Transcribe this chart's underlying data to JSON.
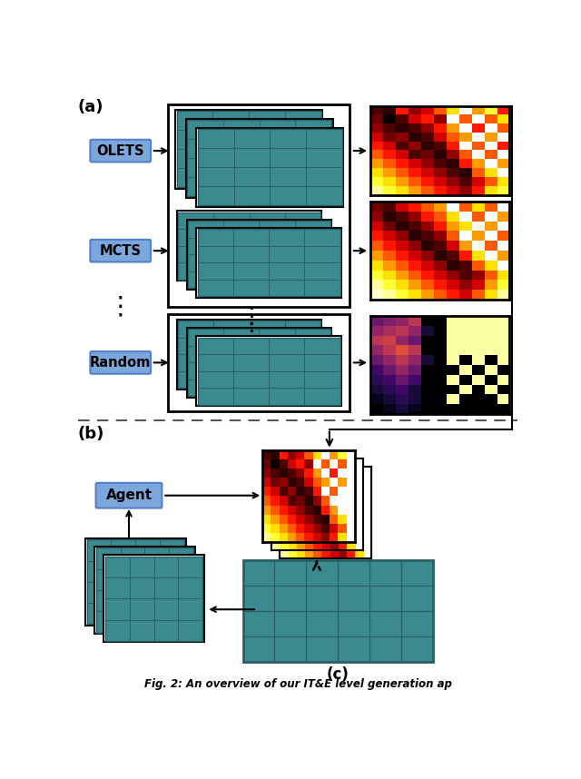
{
  "fig_width": 6.4,
  "fig_height": 8.58,
  "bg_color": "#ffffff",
  "label_a": "(a)",
  "label_b": "(b)",
  "label_c": "(c)",
  "caption": "Fig. 2: An overview of our IT&E level generation ap",
  "olets_label": "OLETS",
  "mcts_label": "MCTS",
  "random_label": "Random",
  "agent_label": "Agent",
  "label_box_color": "#7ba7dc",
  "label_box_edge": "#5580c8",
  "teal_color": "#3a8a90",
  "teal_dark": "#2a6065",
  "teal_light": "#4aacb4",
  "dashed_line_color": "#555555",
  "arrow_color": "#111111",
  "hm1_data": [
    [
      0.9,
      0.95,
      0.6,
      0.8,
      0.7,
      0.5,
      0.3,
      0.0,
      0.4,
      0.2,
      0.6
    ],
    [
      0.85,
      1.0,
      0.9,
      0.7,
      0.6,
      0.8,
      0.0,
      0.5,
      0.0,
      0.5,
      0.3
    ],
    [
      0.8,
      0.9,
      0.95,
      0.9,
      0.8,
      0.6,
      0.4,
      0.0,
      0.6,
      0.0,
      0.5
    ],
    [
      0.7,
      0.85,
      0.8,
      0.95,
      0.9,
      0.7,
      0.5,
      0.4,
      0.0,
      0.4,
      0.0
    ],
    [
      0.6,
      0.7,
      0.9,
      0.8,
      0.95,
      0.9,
      0.6,
      0.0,
      0.5,
      0.0,
      0.6
    ],
    [
      0.5,
      0.6,
      0.7,
      0.9,
      0.85,
      0.95,
      0.8,
      0.5,
      0.0,
      0.5,
      0.0
    ],
    [
      0.4,
      0.5,
      0.6,
      0.7,
      0.8,
      0.9,
      0.95,
      0.6,
      0.4,
      0.0,
      0.4
    ],
    [
      0.3,
      0.4,
      0.5,
      0.6,
      0.7,
      0.8,
      0.9,
      0.95,
      0.5,
      0.3,
      0.0
    ],
    [
      0.2,
      0.3,
      0.4,
      0.5,
      0.6,
      0.7,
      0.8,
      0.9,
      0.7,
      0.5,
      0.3
    ],
    [
      0.1,
      0.2,
      0.3,
      0.4,
      0.5,
      0.6,
      0.7,
      0.8,
      0.6,
      0.3,
      0.2
    ]
  ],
  "hm2_data": [
    [
      0.85,
      0.9,
      0.7,
      0.6,
      0.5,
      0.4,
      0.0,
      0.5,
      0.3,
      0.5,
      0.0
    ],
    [
      0.8,
      0.95,
      0.9,
      0.8,
      0.6,
      0.5,
      0.3,
      0.0,
      0.5,
      0.0,
      0.4
    ],
    [
      0.7,
      0.85,
      0.95,
      0.9,
      0.8,
      0.6,
      0.4,
      0.3,
      0.0,
      0.4,
      0.0
    ],
    [
      0.6,
      0.7,
      0.8,
      0.95,
      0.9,
      0.8,
      0.5,
      0.0,
      0.4,
      0.0,
      0.5
    ],
    [
      0.5,
      0.6,
      0.7,
      0.8,
      0.95,
      0.9,
      0.7,
      0.4,
      0.0,
      0.5,
      0.0
    ],
    [
      0.4,
      0.5,
      0.6,
      0.7,
      0.8,
      0.95,
      0.9,
      0.6,
      0.3,
      0.0,
      0.4
    ],
    [
      0.3,
      0.4,
      0.5,
      0.6,
      0.7,
      0.8,
      0.95,
      0.9,
      0.5,
      0.3,
      0.0
    ],
    [
      0.2,
      0.3,
      0.4,
      0.5,
      0.6,
      0.7,
      0.8,
      0.9,
      0.8,
      0.5,
      0.3
    ],
    [
      0.1,
      0.2,
      0.3,
      0.4,
      0.5,
      0.6,
      0.7,
      0.8,
      0.7,
      0.4,
      0.2
    ],
    [
      0.05,
      0.1,
      0.2,
      0.3,
      0.4,
      0.5,
      0.6,
      0.7,
      0.5,
      0.3,
      0.1
    ]
  ],
  "hm3_data": [
    [
      0.3,
      0.35,
      0.4,
      0.5,
      0.0,
      0.0,
      1.0,
      1.0,
      1.0,
      1.0,
      1.0
    ],
    [
      0.4,
      0.45,
      0.5,
      0.4,
      0.1,
      0.0,
      1.0,
      1.0,
      1.0,
      1.0,
      1.0
    ],
    [
      0.5,
      0.55,
      0.4,
      0.3,
      0.0,
      0.0,
      1.0,
      1.0,
      1.0,
      1.0,
      1.0
    ],
    [
      0.4,
      0.5,
      0.6,
      0.5,
      0.0,
      0.0,
      1.0,
      1.0,
      1.0,
      1.0,
      1.0
    ],
    [
      0.3,
      0.4,
      0.5,
      0.4,
      0.1,
      0.0,
      1.0,
      0.0,
      1.0,
      0.0,
      1.0
    ],
    [
      0.2,
      0.3,
      0.4,
      0.3,
      0.0,
      0.0,
      0.0,
      1.0,
      0.0,
      1.0,
      0.0
    ],
    [
      0.15,
      0.2,
      0.3,
      0.2,
      0.0,
      0.0,
      1.0,
      0.0,
      1.0,
      0.0,
      1.0
    ],
    [
      0.1,
      0.15,
      0.2,
      0.1,
      0.0,
      0.0,
      0.0,
      1.0,
      0.0,
      1.0,
      0.0
    ],
    [
      0.05,
      0.1,
      0.15,
      0.1,
      0.0,
      0.0,
      1.0,
      0.0,
      0.0,
      0.0,
      1.0
    ],
    [
      0.0,
      0.05,
      0.1,
      0.05,
      0.0,
      0.0,
      0.0,
      0.0,
      0.0,
      0.0,
      0.0
    ]
  ],
  "hmb_data": [
    [
      0.9,
      0.95,
      0.6,
      0.8,
      0.7,
      0.5,
      0.3,
      0.0,
      0.4,
      0.2,
      0.0
    ],
    [
      0.85,
      1.0,
      0.9,
      0.7,
      0.6,
      0.8,
      0.0,
      0.5,
      0.0,
      0.5,
      0.0
    ],
    [
      0.8,
      0.9,
      0.95,
      0.9,
      0.8,
      0.6,
      0.4,
      0.0,
      0.6,
      0.0,
      0.0
    ],
    [
      0.7,
      0.85,
      0.8,
      0.95,
      0.9,
      0.7,
      0.5,
      0.4,
      0.0,
      0.4,
      0.0
    ],
    [
      0.6,
      0.7,
      0.9,
      0.8,
      0.95,
      0.9,
      0.6,
      0.0,
      0.5,
      0.0,
      0.0
    ],
    [
      0.5,
      0.6,
      0.7,
      0.9,
      0.85,
      0.95,
      0.8,
      0.5,
      0.0,
      0.0,
      0.0
    ],
    [
      0.4,
      0.5,
      0.6,
      0.7,
      0.8,
      0.9,
      0.95,
      0.6,
      0.4,
      0.0,
      0.0
    ],
    [
      0.3,
      0.4,
      0.5,
      0.6,
      0.7,
      0.8,
      0.9,
      0.95,
      0.5,
      0.3,
      0.0
    ],
    [
      0.2,
      0.3,
      0.4,
      0.5,
      0.6,
      0.7,
      0.8,
      0.9,
      0.7,
      0.5,
      0.0
    ],
    [
      0.1,
      0.2,
      0.3,
      0.4,
      0.5,
      0.6,
      0.7,
      0.8,
      0.6,
      0.3,
      0.0
    ]
  ]
}
